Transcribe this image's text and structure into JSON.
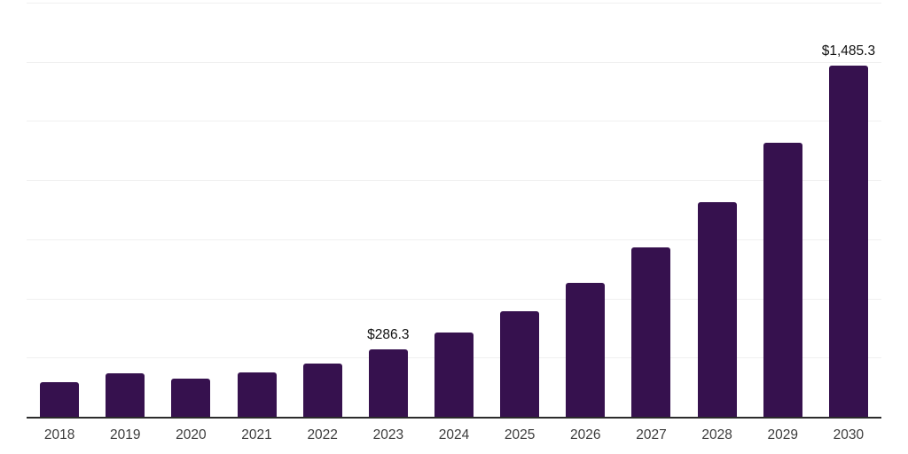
{
  "chart_data": {
    "type": "bar",
    "categories": [
      "2018",
      "2019",
      "2020",
      "2021",
      "2022",
      "2023",
      "2024",
      "2025",
      "2026",
      "2027",
      "2028",
      "2029",
      "2030"
    ],
    "values": [
      145,
      183,
      161,
      186,
      226,
      286.3,
      357,
      447,
      565,
      717,
      906,
      1157,
      1485.3
    ],
    "value_labels": [
      "",
      "",
      "",
      "",
      "",
      "$286.3",
      "",
      "",
      "",
      "",
      "",
      "",
      "$1,485.3"
    ],
    "ylim": [
      0,
      1750
    ],
    "grid_interval": 250,
    "grid": "horizontal-only",
    "legend_position": "none",
    "bar_color": "#36114e",
    "axis_color": "#2b2b2b",
    "grid_color": "#f0f0f0",
    "tick_label_color": "#3d3d3d",
    "data_label_color": "#111111"
  }
}
